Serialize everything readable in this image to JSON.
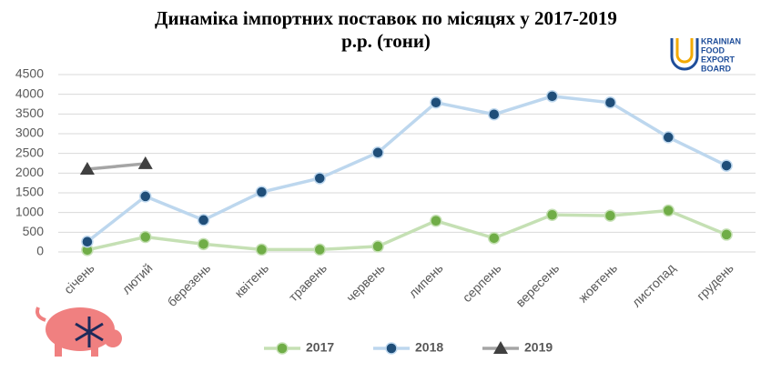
{
  "chart_data": {
    "type": "line",
    "title": [
      "Динаміка імпортних поставок по місяцях у 2017-2019",
      "р.р. (тони)"
    ],
    "logo": [
      "KRAINIAN",
      "FOOD",
      "EXPORT",
      "BOARD"
    ],
    "categories": [
      "січень",
      "лютий",
      "березень",
      "квітень",
      "травень",
      "червень",
      "липень",
      "серпень",
      "вересень",
      "жовтень",
      "листопад",
      "грудень"
    ],
    "series": [
      {
        "name": "2017",
        "color": "#c5e0b4",
        "marker_color": "#70ad47",
        "marker": "circle",
        "values": [
          50,
          380,
          200,
          60,
          60,
          140,
          790,
          350,
          940,
          920,
          1050,
          440
        ]
      },
      {
        "name": "2018",
        "color": "#bdd7ee",
        "marker_color": "#1f4e79",
        "marker": "circle",
        "values": [
          260,
          1410,
          810,
          1520,
          1870,
          2520,
          3790,
          3490,
          3950,
          3790,
          2910,
          2190
        ]
      },
      {
        "name": "2019",
        "color": "#a5a5a5",
        "marker_color": "#404040",
        "marker": "triangle",
        "values": [
          2100,
          2240,
          null,
          null,
          null,
          null,
          null,
          null,
          null,
          null,
          null,
          null
        ]
      }
    ],
    "ylim": [
      0,
      4500
    ],
    "yticks": [
      0,
      500,
      1000,
      1500,
      2000,
      2500,
      3000,
      3500,
      4000,
      4500
    ],
    "grid": true,
    "legend": "bottom"
  }
}
